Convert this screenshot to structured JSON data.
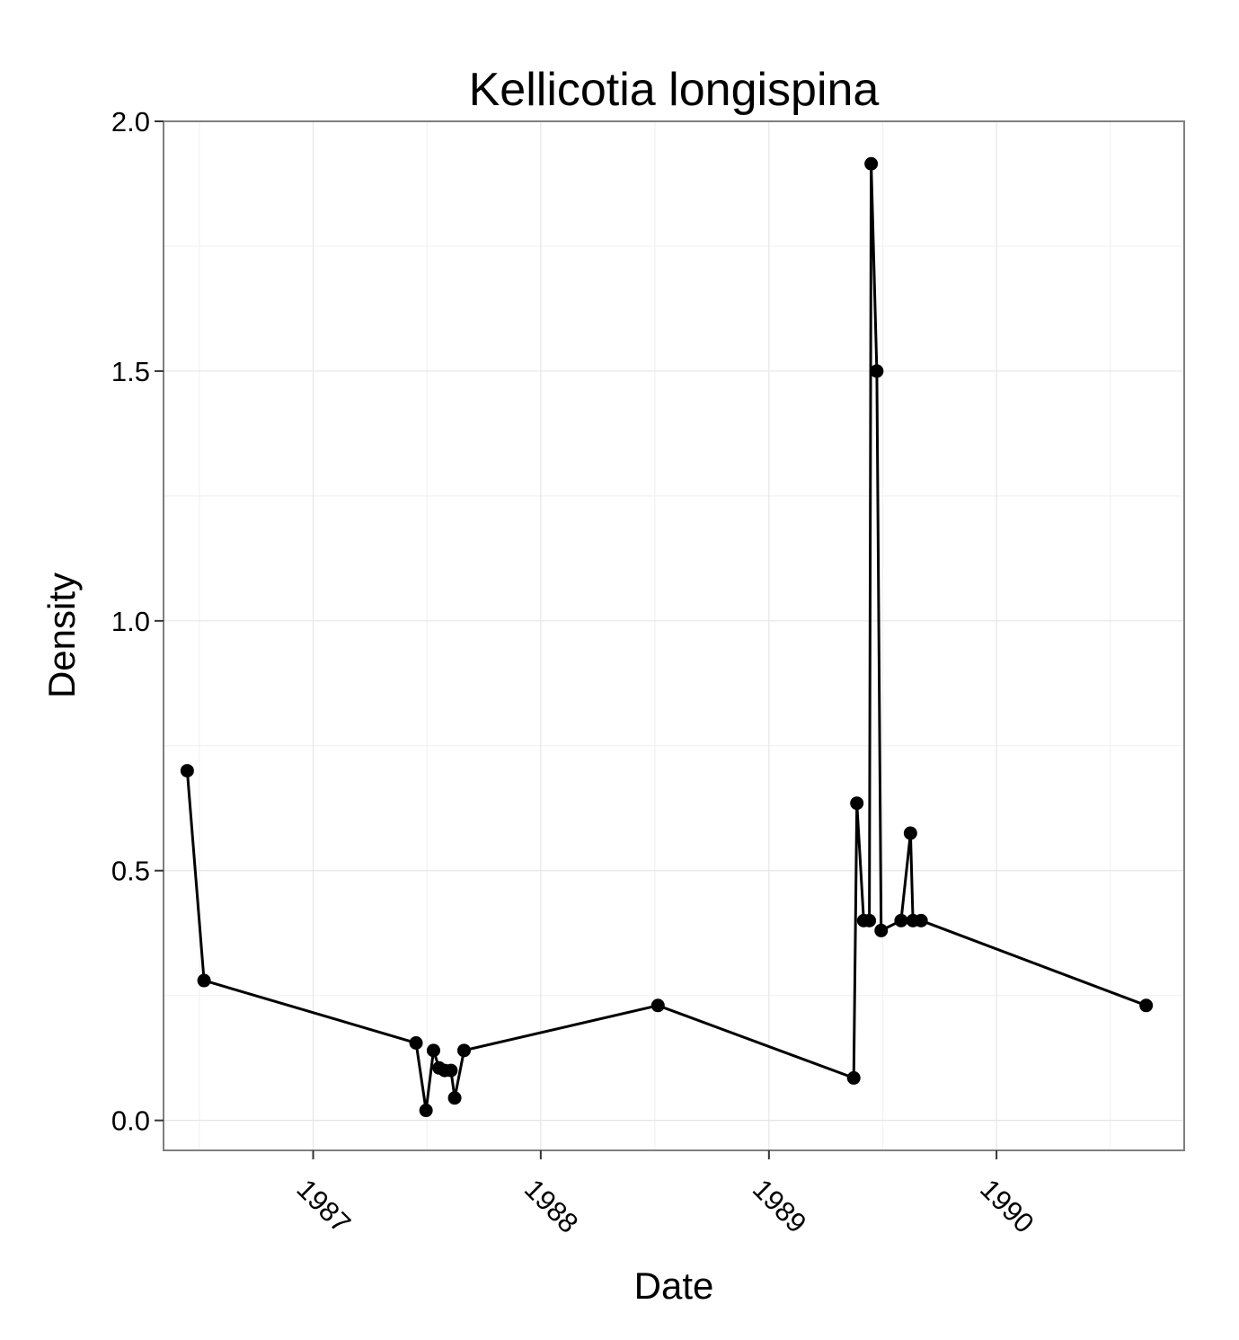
{
  "chart_data": {
    "type": "line",
    "title": "Kellicotia longispina",
    "xlabel": "Date",
    "ylabel": "Density",
    "x_axis": "date",
    "xlim": [
      "1986-05-06",
      "1990-10-29"
    ],
    "ylim": [
      -0.06,
      2.0
    ],
    "x_ticks": [
      {
        "label": "1987",
        "date": "1987-01-01"
      },
      {
        "label": "1988",
        "date": "1988-01-01"
      },
      {
        "label": "1989",
        "date": "1989-01-01"
      },
      {
        "label": "1990",
        "date": "1990-01-01"
      }
    ],
    "y_ticks": [
      {
        "label": "0.0",
        "value": 0.0
      },
      {
        "label": "0.5",
        "value": 0.5
      },
      {
        "label": "1.0",
        "value": 1.0
      },
      {
        "label": "1.5",
        "value": 1.5
      },
      {
        "label": "2.0",
        "value": 2.0
      }
    ],
    "grid": true,
    "legend": "none",
    "colors": {
      "line": "#000000",
      "points": "#000000",
      "grid": "#e6e6e6",
      "panel_border": "#7f7f7f"
    },
    "series": [
      {
        "points": [
          {
            "x": "1986-06-13",
            "y": 0.7
          },
          {
            "x": "1986-07-10",
            "y": 0.28
          },
          {
            "x": "1987-06-15",
            "y": 0.155
          },
          {
            "x": "1987-07-01",
            "y": 0.02
          },
          {
            "x": "1987-07-13",
            "y": 0.14
          },
          {
            "x": "1987-07-22",
            "y": 0.105
          },
          {
            "x": "1987-07-31",
            "y": 0.1
          },
          {
            "x": "1987-08-10",
            "y": 0.1
          },
          {
            "x": "1987-08-16",
            "y": 0.045
          },
          {
            "x": "1987-08-31",
            "y": 0.14
          },
          {
            "x": "1988-07-07",
            "y": 0.23
          },
          {
            "x": "1989-05-17",
            "y": 0.085
          },
          {
            "x": "1989-05-22",
            "y": 0.635
          },
          {
            "x": "1989-06-02",
            "y": 0.4
          },
          {
            "x": "1989-06-11",
            "y": 0.4
          },
          {
            "x": "1989-06-14",
            "y": 1.915
          },
          {
            "x": "1989-06-23",
            "y": 1.5
          },
          {
            "x": "1989-06-30",
            "y": 0.38
          },
          {
            "x": "1989-08-01",
            "y": 0.4
          },
          {
            "x": "1989-08-16",
            "y": 0.575
          },
          {
            "x": "1989-08-20",
            "y": 0.4
          },
          {
            "x": "1989-09-02",
            "y": 0.4
          },
          {
            "x": "1990-08-29",
            "y": 0.23
          }
        ]
      }
    ]
  }
}
